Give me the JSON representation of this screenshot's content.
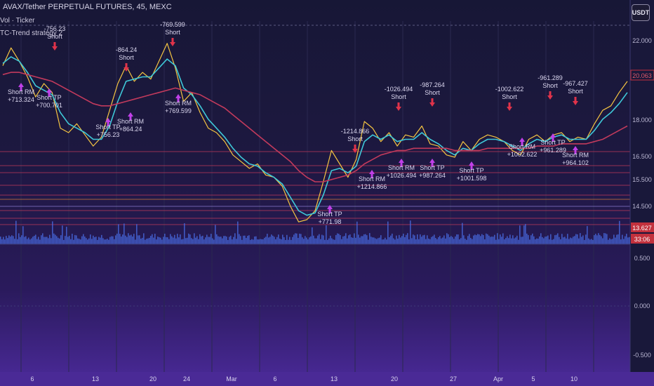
{
  "header": {
    "title": "AVAX/Tether PERPETUAL FUTURES, 45, MEXC",
    "currency_button": "USDT",
    "indicator_1": "Vol · Ticker",
    "indicator_2": "TC-Trend strategy 2"
  },
  "colors": {
    "candle_up": "#f5c542",
    "fast_ma": "#3fc8d8",
    "slow_ma": "#c23a5c",
    "buy_marker": "#c040e8",
    "sell_marker": "#e0334a",
    "volume": "#4a6fe8",
    "last_price_box": "#c2313d"
  },
  "chart_data": {
    "type": "line",
    "title": "AVAX/Tether PERPETUAL FUTURES, 45, MEXC",
    "xlabel": "",
    "ylabel": "",
    "x_ticks": [
      "6",
      "13",
      "20",
      "24",
      "Mar",
      "6",
      "13",
      "20",
      "27",
      "Apr",
      "5",
      "10"
    ],
    "y_ticks_main": [
      "22.000",
      "20.063",
      "18.000",
      "16.500",
      "15.500",
      "14.500",
      "13.627",
      "33:06"
    ],
    "y_ticks_osc": [
      "0.500",
      "0.000",
      "-0.500"
    ],
    "price_range": [
      13.0,
      23.0
    ],
    "last_price": "20.063",
    "volume_price": "13.627",
    "countdown": "33:06",
    "series": [
      {
        "type": "line",
        "values": [
          21.0,
          21.8,
          21.2,
          20.5,
          19.6,
          20.2,
          19.8,
          18.2,
          18.0,
          18.4,
          17.9,
          17.4,
          17.8,
          19.0,
          20.2,
          21.0,
          20.3,
          20.7,
          20.4,
          21.2,
          22.0,
          20.9,
          19.4,
          19.8,
          18.9,
          18.2,
          18.0,
          17.6,
          17.0,
          16.7,
          16.4,
          16.6,
          16.1,
          16.0,
          15.6,
          14.7,
          14.0,
          14.1,
          14.5,
          15.8,
          17.2,
          16.6,
          16.0,
          16.8,
          18.5,
          18.2,
          17.6,
          18.0,
          17.4,
          17.9,
          17.8,
          18.3,
          17.5,
          17.4,
          17.0,
          16.9,
          17.6,
          17.2,
          17.7,
          17.9,
          17.8,
          17.6,
          17.2,
          17.0,
          17.7,
          17.9,
          17.6,
          17.9,
          18.0,
          17.6,
          17.8,
          17.7,
          18.4,
          19.0,
          19.2,
          19.8,
          20.3
        ]
      },
      {
        "type": "line",
        "values": [
          21.1,
          21.4,
          21.2,
          20.7,
          20.1,
          19.9,
          19.7,
          18.9,
          18.4,
          18.2,
          18.0,
          17.7,
          17.7,
          18.3,
          19.4,
          20.3,
          20.4,
          20.5,
          20.5,
          20.9,
          21.3,
          21.0,
          20.0,
          19.7,
          19.2,
          18.6,
          18.2,
          17.8,
          17.3,
          16.9,
          16.6,
          16.5,
          16.2,
          16.0,
          15.7,
          15.1,
          14.5,
          14.3,
          14.4,
          15.2,
          16.3,
          16.4,
          16.2,
          16.5,
          17.6,
          17.9,
          17.7,
          17.9,
          17.6,
          17.7,
          17.7,
          18.0,
          17.7,
          17.5,
          17.2,
          17.0,
          17.3,
          17.2,
          17.5,
          17.7,
          17.7,
          17.6,
          17.4,
          17.2,
          17.5,
          17.7,
          17.6,
          17.8,
          17.9,
          17.7,
          17.7,
          17.7,
          18.1,
          18.6,
          18.9,
          19.3,
          19.8
        ]
      },
      {
        "type": "line",
        "values": [
          20.6,
          20.7,
          20.7,
          20.6,
          20.5,
          20.4,
          20.3,
          20.1,
          19.9,
          19.7,
          19.5,
          19.3,
          19.2,
          19.2,
          19.3,
          19.4,
          19.5,
          19.6,
          19.7,
          19.8,
          19.9,
          20.0,
          19.9,
          19.8,
          19.7,
          19.5,
          19.3,
          19.1,
          18.8,
          18.5,
          18.2,
          17.9,
          17.6,
          17.3,
          17.0,
          16.7,
          16.3,
          16.0,
          15.8,
          15.8,
          15.9,
          16.0,
          16.1,
          16.3,
          16.6,
          16.8,
          17.0,
          17.1,
          17.2,
          17.2,
          17.3,
          17.3,
          17.3,
          17.3,
          17.3,
          17.2,
          17.2,
          17.2,
          17.2,
          17.3,
          17.3,
          17.3,
          17.3,
          17.3,
          17.3,
          17.4,
          17.4,
          17.4,
          17.5,
          17.5,
          17.5,
          17.5,
          17.6,
          17.7,
          17.9,
          18.1,
          18.3
        ]
      }
    ]
  },
  "trade_labels": [
    {
      "text": "Short RM",
      "sub": "+713.324",
      "dir": "buy"
    },
    {
      "text": "Short TP",
      "sub": "+700.701",
      "dir": "buy"
    },
    {
      "text": "-756.23",
      "sub": "Short",
      "dir": "sell"
    },
    {
      "text": "Short TP",
      "sub": "+756.23",
      "dir": "buy"
    },
    {
      "text": "-864.24",
      "sub": "Short",
      "dir": "sell"
    },
    {
      "text": "Short RM",
      "sub": "+864.24",
      "dir": "buy"
    },
    {
      "text": "-769.599",
      "sub": "Short",
      "dir": "sell"
    },
    {
      "text": "Short RM",
      "sub": "+769.599",
      "dir": "buy"
    },
    {
      "text": "-1214.866",
      "sub": "Short",
      "dir": "sell"
    },
    {
      "text": "Short RM",
      "sub": "+1214.866",
      "dir": "buy"
    },
    {
      "text": "Short TP",
      "sub": "+771.98",
      "dir": "buy"
    },
    {
      "text": "-1026.494",
      "sub": "Short",
      "dir": "sell"
    },
    {
      "text": "Short RM",
      "sub": "+1026.494",
      "dir": "buy"
    },
    {
      "text": "-987.264",
      "sub": "Short",
      "dir": "sell"
    },
    {
      "text": "Short TP",
      "sub": "+987.264",
      "dir": "buy"
    },
    {
      "text": "-1002.622",
      "sub": "Short",
      "dir": "sell"
    },
    {
      "text": "Short RM",
      "sub": "+1002.622",
      "dir": "buy"
    },
    {
      "text": "Short TP",
      "sub": "+1001.598",
      "dir": "buy"
    },
    {
      "text": "-961.289",
      "sub": "Short",
      "dir": "sell"
    },
    {
      "text": "Short TP",
      "sub": "+961.289",
      "dir": "buy"
    },
    {
      "text": "-967.427",
      "sub": "Short",
      "dir": "sell"
    },
    {
      "text": "Short RM",
      "sub": "+964.102",
      "dir": "buy"
    }
  ]
}
